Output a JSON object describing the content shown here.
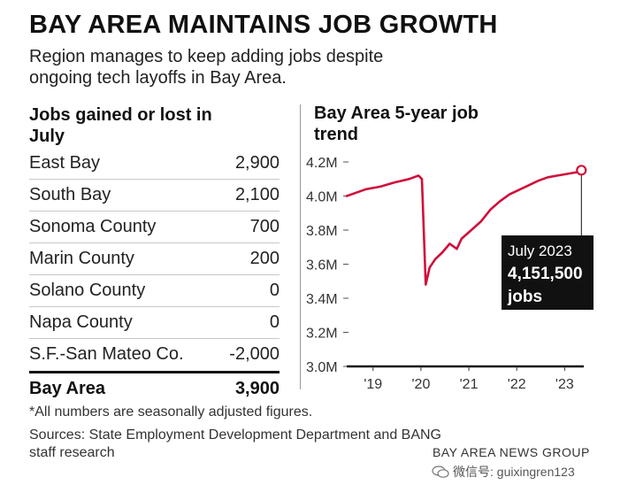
{
  "header": {
    "title": "BAY AREA MAINTAINS JOB GROWTH",
    "subtitle": "Region manages to keep adding jobs despite ongoing tech layoffs in Bay Area."
  },
  "table": {
    "heading": "Jobs gained or lost in July",
    "rows": [
      {
        "label": "East Bay",
        "value": "2,900"
      },
      {
        "label": "South Bay",
        "value": "2,100"
      },
      {
        "label": "Sonoma County",
        "value": "700"
      },
      {
        "label": "Marin County",
        "value": "200"
      },
      {
        "label": "Solano County",
        "value": "0"
      },
      {
        "label": "Napa County",
        "value": "0"
      },
      {
        "label": "S.F.-San Mateo Co.",
        "value": "-2,000"
      }
    ],
    "total": {
      "label": "Bay Area",
      "value": "3,900"
    }
  },
  "chart_data": {
    "type": "line",
    "title": "Bay Area 5-year job trend",
    "xlabel": "",
    "ylabel": "",
    "x_ticks": [
      "'19",
      "'20",
      "'21",
      "'22",
      "'23"
    ],
    "y_ticks": [
      "3.0M",
      "3.2M",
      "3.4M",
      "3.6M",
      "3.8M",
      "4.0M",
      "4.2M"
    ],
    "ylim": [
      3.0,
      4.2
    ],
    "xlim": [
      2018.6,
      2023.55
    ],
    "grid": false,
    "line_color": "#d0103a",
    "series": [
      {
        "points": [
          [
            2018.6,
            4.0
          ],
          [
            2018.8,
            4.02
          ],
          [
            2019.0,
            4.04
          ],
          [
            2019.3,
            4.055
          ],
          [
            2019.6,
            4.08
          ],
          [
            2019.9,
            4.1
          ],
          [
            2020.1,
            4.12
          ],
          [
            2020.17,
            4.1
          ],
          [
            2020.25,
            3.48
          ],
          [
            2020.33,
            3.58
          ],
          [
            2020.45,
            3.63
          ],
          [
            2020.6,
            3.67
          ],
          [
            2020.75,
            3.72
          ],
          [
            2020.9,
            3.69
          ],
          [
            2021.0,
            3.75
          ],
          [
            2021.2,
            3.8
          ],
          [
            2021.4,
            3.85
          ],
          [
            2021.6,
            3.92
          ],
          [
            2021.8,
            3.97
          ],
          [
            2022.0,
            4.01
          ],
          [
            2022.3,
            4.05
          ],
          [
            2022.6,
            4.09
          ],
          [
            2022.8,
            4.11
          ],
          [
            2023.0,
            4.12
          ],
          [
            2023.2,
            4.13
          ],
          [
            2023.4,
            4.14
          ],
          [
            2023.5,
            4.1515
          ]
        ]
      }
    ],
    "annotation": {
      "line1": "July 2023",
      "line2": "4,151,500",
      "line3": "jobs",
      "x": 2023.5,
      "y": 4.1515
    }
  },
  "footer": {
    "footnote": "*All numbers are seasonally adjusted figures.",
    "sources": "Sources: State Employment Development Department and BANG staff research",
    "credit": "BAY AREA NEWS GROUP",
    "watermark": "微信号: guixingren123"
  }
}
